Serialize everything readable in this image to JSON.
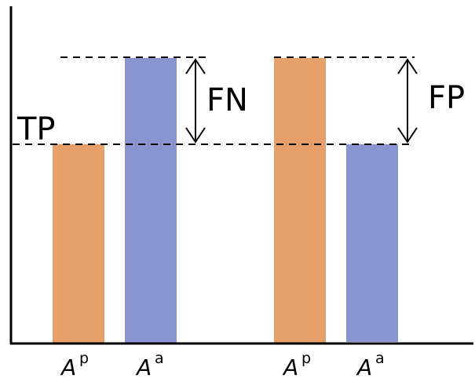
{
  "colors": {
    "predicted": "#E8A06A",
    "actual": "#8895D0",
    "line": "#000000"
  },
  "labels": {
    "tp": "TP",
    "fn": "FN",
    "fp": "FP"
  },
  "bars": [
    {
      "group": "left",
      "base": "A",
      "sup": "p",
      "level": "TP",
      "color_key": "predicted"
    },
    {
      "group": "left",
      "base": "A",
      "sup": "a",
      "level": "high",
      "color_key": "actual"
    },
    {
      "group": "right",
      "base": "A",
      "sup": "p",
      "level": "high",
      "color_key": "predicted"
    },
    {
      "group": "right",
      "base": "A",
      "sup": "a",
      "level": "TP",
      "color_key": "actual"
    }
  ]
}
